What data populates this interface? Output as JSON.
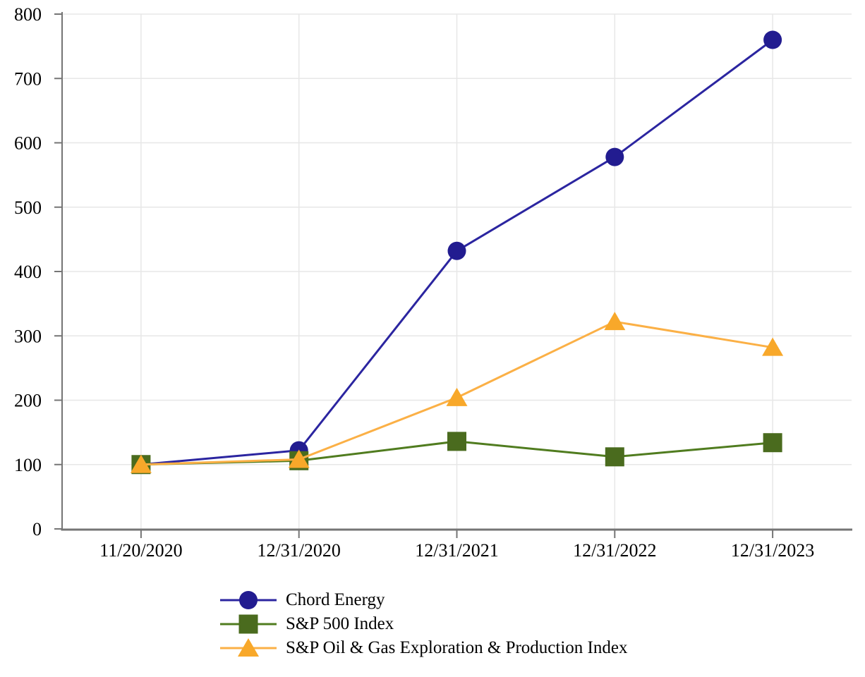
{
  "chart_data": {
    "type": "line",
    "title": "",
    "xlabel": "",
    "ylabel": "",
    "categories": [
      "11/20/2020",
      "12/31/2020",
      "12/31/2021",
      "12/31/2022",
      "12/31/2023"
    ],
    "series": [
      {
        "name": "Chord Energy",
        "marker": "circle",
        "color": "#221c90",
        "line_color": "#2b25a0",
        "values": [
          100,
          122,
          432,
          578,
          760
        ]
      },
      {
        "name": "S&P 500 Index",
        "marker": "square",
        "color": "#4a6b1e",
        "line_color": "#507c1f",
        "values": [
          100,
          106,
          136,
          112,
          134
        ]
      },
      {
        "name": "S&P Oil & Gas Exploration & Production Index",
        "marker": "triangle",
        "color": "#f8a82a",
        "line_color": "#fbb046",
        "values": [
          100,
          108,
          204,
          322,
          282
        ]
      }
    ],
    "ylim": [
      0,
      800
    ],
    "y_ticks": [
      0,
      100,
      200,
      300,
      400,
      500,
      600,
      700,
      800
    ],
    "grid": true,
    "legend_position": "bottom-left",
    "grid_color": "#e7e7e7",
    "axis_color": "#757575",
    "tick_label_color": "#000000"
  }
}
